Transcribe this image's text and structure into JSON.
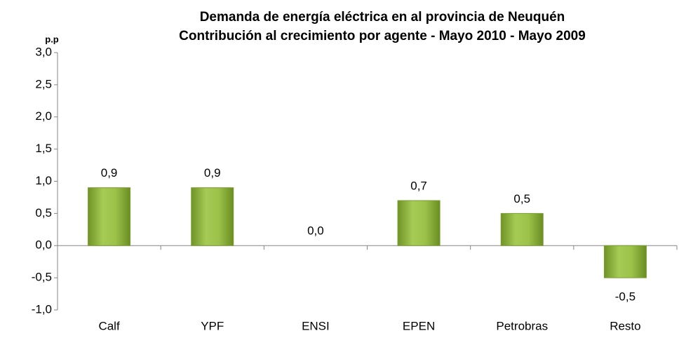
{
  "chart_data": {
    "type": "bar",
    "title": [
      "Demanda de energía eléctrica en al provincia de Neuquén",
      "Contribución al crecimiento por agente - Mayo 2010 - Mayo 2009"
    ],
    "y_label": "p.p",
    "categories": [
      "Calf",
      "YPF",
      "ENSI",
      "EPEN",
      "Petrobras",
      "Resto"
    ],
    "values": [
      0.9,
      0.9,
      0.0,
      0.7,
      0.5,
      -0.5
    ],
    "value_labels": [
      "0,9",
      "0,9",
      "0,0",
      "0,7",
      "0,5",
      "-0,5"
    ],
    "color": "#8db33a",
    "ylim": [
      -1.0,
      3.0
    ],
    "yticks": [
      {
        "value": -1.0,
        "label": "-1,0"
      },
      {
        "value": -0.5,
        "label": "-0,5"
      },
      {
        "value": 0.0,
        "label": "0,0"
      },
      {
        "value": 0.5,
        "label": "0,5"
      },
      {
        "value": 1.0,
        "label": "1,0"
      },
      {
        "value": 1.5,
        "label": "1,5"
      },
      {
        "value": 2.0,
        "label": "2,0"
      },
      {
        "value": 2.5,
        "label": "2,5"
      },
      {
        "value": 3.0,
        "label": "3,0"
      }
    ],
    "grid": false
  }
}
